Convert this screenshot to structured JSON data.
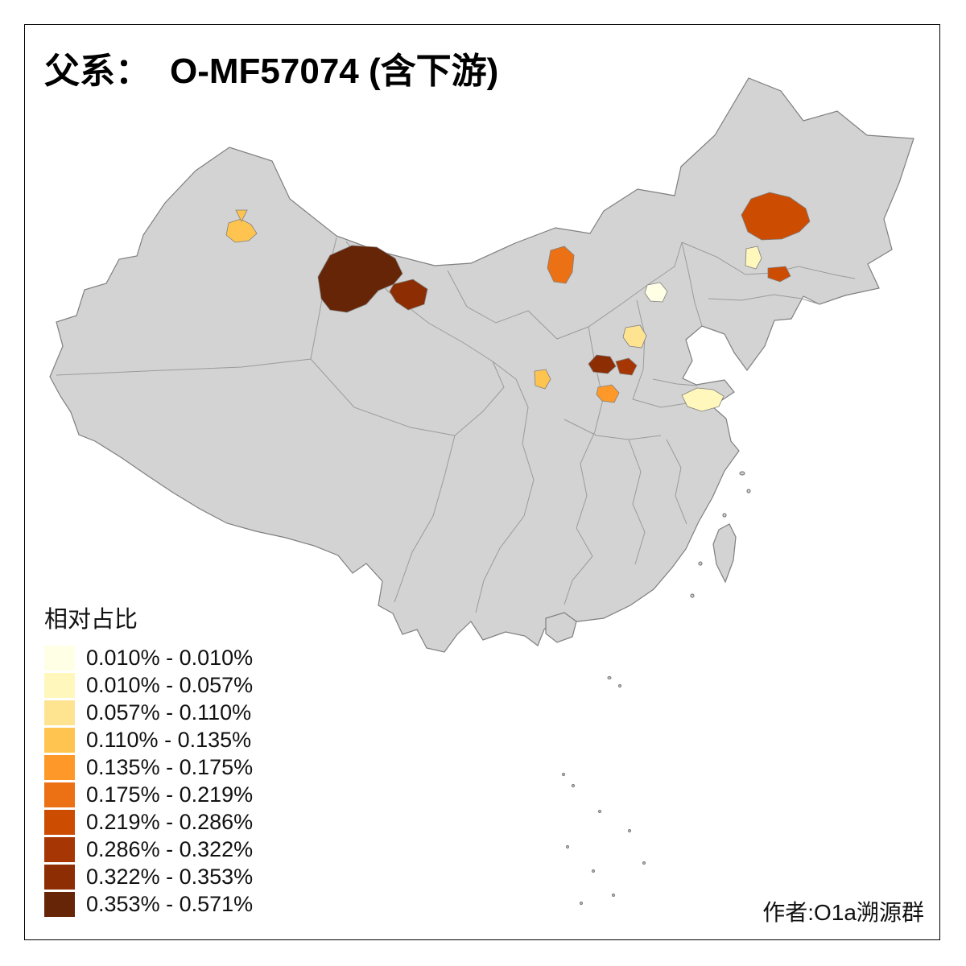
{
  "title": {
    "prefix": "父系：",
    "name": "O-MF57074 (含下游)"
  },
  "legend": {
    "title": "相对占比",
    "items": [
      {
        "label": "0.010% - 0.010%",
        "color": "#FFFFE5"
      },
      {
        "label": "0.010% - 0.057%",
        "color": "#FFF7BC"
      },
      {
        "label": "0.057% - 0.110%",
        "color": "#FEE391"
      },
      {
        "label": "0.110% - 0.135%",
        "color": "#FEC44F"
      },
      {
        "label": "0.135% - 0.175%",
        "color": "#FE9929"
      },
      {
        "label": "0.175% - 0.219%",
        "color": "#EC7014"
      },
      {
        "label": "0.219% - 0.286%",
        "color": "#CC4C02"
      },
      {
        "label": "0.286% - 0.322%",
        "color": "#A63603"
      },
      {
        "label": "0.322% - 0.353%",
        "color": "#8C2D04"
      },
      {
        "label": "0.353% - 0.571%",
        "color": "#662506"
      }
    ]
  },
  "credit": "作者:O1a溯源群",
  "map": {
    "base_fill": "#D3D3D3",
    "outline_stroke": "#7F7F7F",
    "inner_boundary_stroke": "#9B9B9B",
    "regions": [
      {
        "id": "xj-bole",
        "class_index": 3
      },
      {
        "id": "gs-west-large",
        "class_index": 9
      },
      {
        "id": "gs-west-small",
        "class_index": 8
      },
      {
        "id": "nm-bayannur",
        "class_index": 5
      },
      {
        "id": "ne-qiqihar",
        "class_index": 6
      },
      {
        "id": "jl-pale",
        "class_index": 1
      },
      {
        "id": "jl-dark",
        "class_index": 6
      },
      {
        "id": "bj-pale",
        "class_index": 0
      },
      {
        "id": "heb-light",
        "class_index": 2
      },
      {
        "id": "sx-dark-left",
        "class_index": 8
      },
      {
        "id": "sx-dark-right",
        "class_index": 7
      },
      {
        "id": "gs-east-orange",
        "class_index": 3
      },
      {
        "id": "ha-orange",
        "class_index": 4
      },
      {
        "id": "js-pale",
        "class_index": 1
      }
    ]
  }
}
